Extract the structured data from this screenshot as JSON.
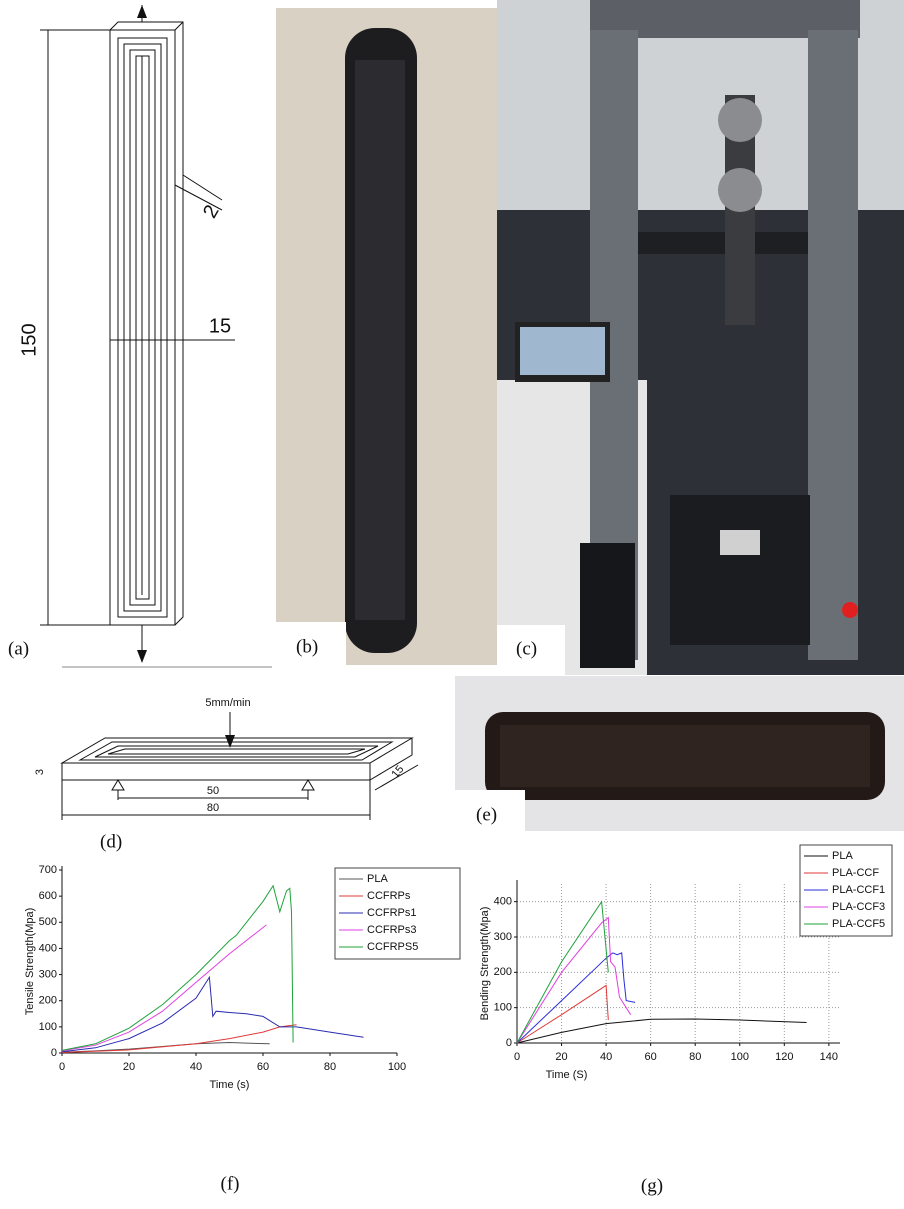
{
  "panel_labels": {
    "a": "(a)",
    "b": "(b)",
    "c": "(c)",
    "d": "(d)",
    "e": "(e)",
    "f": "(f)",
    "g": "(g)"
  },
  "drawing_a": {
    "length": "150",
    "width": "15",
    "gap": "2"
  },
  "drawing_d": {
    "speed": "5mm/min",
    "thickness": "3",
    "span": "50",
    "length": "80",
    "width": "15"
  },
  "chart_data": [
    {
      "type": "line",
      "y_label": "Tensile Strength(Mpa)",
      "x_label": "Time (s)",
      "xlim": [
        0,
        100
      ],
      "xticks": [
        0,
        20,
        40,
        60,
        80,
        100
      ],
      "ylim": [
        0,
        700
      ],
      "yticks": [
        0,
        100,
        200,
        300,
        400,
        500,
        600,
        700
      ],
      "grid": false,
      "legend": "upper right",
      "series": [
        {
          "name": "PLA",
          "color": "#555555",
          "x": [
            0,
            10,
            20,
            30,
            40,
            50,
            55,
            62
          ],
          "values": [
            3,
            8,
            15,
            25,
            35,
            40,
            38,
            35
          ]
        },
        {
          "name": "CCFRPs",
          "color": "#e03a3a",
          "x": [
            0,
            20,
            40,
            50,
            60,
            65,
            70
          ],
          "values": [
            2,
            12,
            35,
            55,
            80,
            100,
            108
          ]
        },
        {
          "name": "CCFRPs1",
          "color": "#2b2bb0",
          "x": [
            0,
            10,
            20,
            30,
            40,
            44,
            45,
            46,
            50,
            55,
            60,
            65,
            70,
            80,
            90
          ],
          "values": [
            5,
            20,
            55,
            115,
            210,
            290,
            140,
            160,
            155,
            150,
            140,
            100,
            100,
            80,
            60
          ]
        },
        {
          "name": "CCFRPs3",
          "color": "#e040e0",
          "x": [
            0,
            10,
            20,
            30,
            40,
            50,
            61
          ],
          "values": [
            8,
            30,
            80,
            160,
            270,
            380,
            490
          ]
        },
        {
          "name": "CCFRPS5",
          "color": "#1fa23a",
          "x": [
            0,
            10,
            20,
            30,
            40,
            50,
            52,
            60,
            63,
            65,
            67,
            68,
            68.5,
            69
          ],
          "values": [
            10,
            35,
            95,
            185,
            300,
            430,
            450,
            580,
            640,
            540,
            620,
            630,
            540,
            40
          ]
        }
      ]
    },
    {
      "type": "line",
      "y_label": "Bending Strength(Mpa)",
      "x_label": "Time (S)",
      "xlim": [
        0,
        145
      ],
      "xticks": [
        0,
        20,
        40,
        60,
        80,
        100,
        120,
        140
      ],
      "ylim": [
        0,
        450
      ],
      "yticks": [
        0,
        100,
        200,
        300,
        400
      ],
      "grid": true,
      "legend": "upper right",
      "series": [
        {
          "name": "PLA",
          "color": "#111111",
          "x": [
            0,
            20,
            40,
            60,
            80,
            100,
            130
          ],
          "values": [
            0,
            30,
            55,
            67,
            68,
            65,
            58
          ]
        },
        {
          "name": "PLA-CCF",
          "color": "#e03a3a",
          "x": [
            0,
            20,
            40,
            41
          ],
          "values": [
            0,
            80,
            163,
            65
          ]
        },
        {
          "name": "PLA-CCF1",
          "color": "#2b2bdd",
          "x": [
            0,
            20,
            40,
            43,
            45,
            47,
            48,
            49,
            53
          ],
          "values": [
            0,
            120,
            240,
            255,
            250,
            255,
            180,
            120,
            115
          ]
        },
        {
          "name": "PLA-CCF3",
          "color": "#e040e0",
          "x": [
            0,
            20,
            38,
            41,
            42,
            44,
            46,
            50,
            51
          ],
          "values": [
            0,
            200,
            340,
            355,
            230,
            215,
            130,
            90,
            80
          ]
        },
        {
          "name": "PLA-CCF5",
          "color": "#1fa23a",
          "x": [
            0,
            20,
            38,
            41
          ],
          "values": [
            0,
            230,
            400,
            200
          ]
        }
      ]
    }
  ]
}
